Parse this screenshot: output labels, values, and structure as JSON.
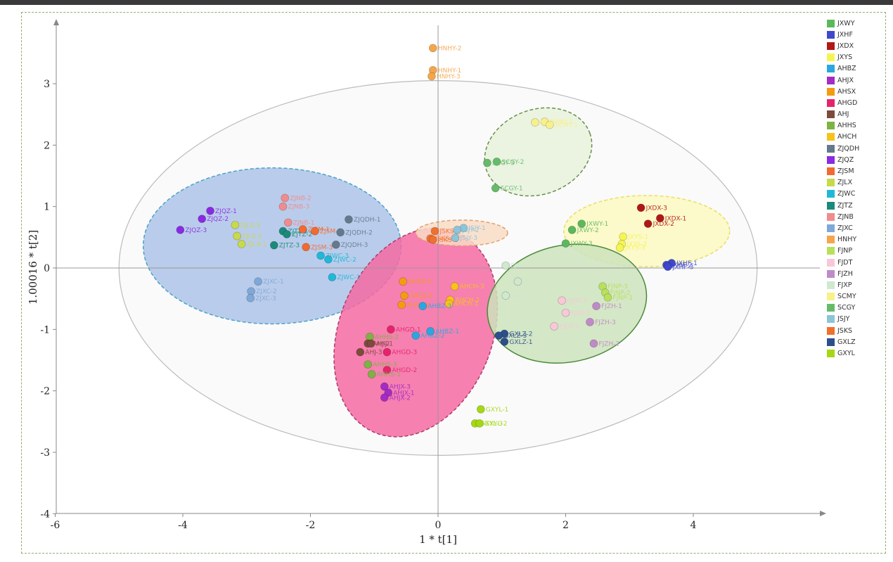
{
  "chart_data": {
    "type": "scatter",
    "xlabel": "1 * t[1]",
    "ylabel": "1.00016 * t[2]",
    "xlim": [
      -6,
      6
    ],
    "ylim": [
      -4,
      4
    ],
    "xticks": [
      -6,
      -4,
      -2,
      0,
      2,
      4
    ],
    "yticks": [
      -4,
      -3,
      -2,
      -1,
      0,
      1,
      2,
      3
    ],
    "grid": false,
    "legend_position": "right",
    "groups": [
      {
        "name": "JXWY",
        "color": "#5cb85c"
      },
      {
        "name": "JXHF",
        "color": "#3f48cc"
      },
      {
        "name": "JXDX",
        "color": "#b01818"
      },
      {
        "name": "JXYS",
        "color": "#f5f552"
      },
      {
        "name": "AHBZ",
        "color": "#29a7e1"
      },
      {
        "name": "AHJX",
        "color": "#a32cc4"
      },
      {
        "name": "AHSX",
        "color": "#f39c12"
      },
      {
        "name": "AHGD",
        "color": "#e6246b"
      },
      {
        "name": "AHJ",
        "color": "#7d4a3c"
      },
      {
        "name": "AHHS",
        "color": "#7cb342"
      },
      {
        "name": "AHCH",
        "color": "#f7c21a"
      },
      {
        "name": "ZJQDH",
        "color": "#647a8c"
      },
      {
        "name": "ZJQZ",
        "color": "#8a2be2"
      },
      {
        "name": "ZJSM",
        "color": "#f26a30"
      },
      {
        "name": "ZJLX",
        "color": "#c8d94a"
      },
      {
        "name": "ZJWC",
        "color": "#20b8d8"
      },
      {
        "name": "ZJTZ",
        "color": "#1b8a7a"
      },
      {
        "name": "ZJNB",
        "color": "#f08c8c"
      },
      {
        "name": "ZJXC",
        "color": "#7fa8d8"
      },
      {
        "name": "HNHY",
        "color": "#f5a54a"
      },
      {
        "name": "FJNP",
        "color": "#b8e05c"
      },
      {
        "name": "FJDT",
        "color": "#f8c8d8"
      },
      {
        "name": "FJZH",
        "color": "#c08ac8"
      },
      {
        "name": "FJXP",
        "color": "#cfe8cf"
      },
      {
        "name": "SCMY",
        "color": "#f8f08a"
      },
      {
        "name": "SCGY",
        "color": "#66bb6a"
      },
      {
        "name": "JSJY",
        "color": "#8cc4d8"
      },
      {
        "name": "JSKS",
        "color": "#f07030"
      },
      {
        "name": "GXLZ",
        "color": "#2c4f8c"
      },
      {
        "name": "GXYL",
        "color": "#a4d814"
      }
    ],
    "points": [
      {
        "label": "HNHY-2",
        "x": -0.08,
        "y": 3.58,
        "color": "#f5a54a"
      },
      {
        "label": "HNHY-1",
        "x": -0.08,
        "y": 3.22,
        "color": "#f5a54a"
      },
      {
        "label": "HNHY-3",
        "x": -0.1,
        "y": 3.12,
        "color": "#f5a54a"
      },
      {
        "label": "SCMY-2",
        "x": 1.67,
        "y": 2.38,
        "color": "#f8f08a"
      },
      {
        "label": "SCMY-1",
        "x": 1.75,
        "y": 2.33,
        "color": "#f8f08a"
      },
      {
        "label": "SCMY-3",
        "x": 1.52,
        "y": 2.37,
        "color": "#f8f08a"
      },
      {
        "label": "SCGY-2",
        "x": 0.92,
        "y": 1.73,
        "color": "#66bb6a"
      },
      {
        "label": "SCGY-3",
        "x": 0.77,
        "y": 1.71,
        "color": "#66bb6a"
      },
      {
        "label": "SCGY-1",
        "x": 0.9,
        "y": 1.3,
        "color": "#66bb6a"
      },
      {
        "label": "ZJQZ-1",
        "x": -3.57,
        "y": 0.93,
        "color": "#8a2be2"
      },
      {
        "label": "ZJQZ-2",
        "x": -3.7,
        "y": 0.8,
        "color": "#8a2be2"
      },
      {
        "label": "ZJQZ-3",
        "x": -4.04,
        "y": 0.62,
        "color": "#8a2be2"
      },
      {
        "label": "ZJLX-3",
        "x": -3.18,
        "y": 0.7,
        "color": "#c8d94a"
      },
      {
        "label": "ZJLX-2",
        "x": -3.15,
        "y": 0.52,
        "color": "#c8d94a"
      },
      {
        "label": "ZJLX-1",
        "x": -3.08,
        "y": 0.39,
        "color": "#c8d94a"
      },
      {
        "label": "ZJNB-2",
        "x": -2.4,
        "y": 1.14,
        "color": "#f08c8c"
      },
      {
        "label": "ZJNB-3",
        "x": -2.43,
        "y": 1.0,
        "color": "#f08c8c"
      },
      {
        "label": "ZJNB-1",
        "x": -2.35,
        "y": 0.74,
        "color": "#f08c8c"
      },
      {
        "label": "ZJTZ-1",
        "x": -2.43,
        "y": 0.6,
        "color": "#1b8a7a"
      },
      {
        "label": "ZJTZ-2",
        "x": -2.37,
        "y": 0.55,
        "color": "#1b8a7a"
      },
      {
        "label": "ZJTZ-3",
        "x": -2.57,
        "y": 0.37,
        "color": "#1b8a7a"
      },
      {
        "label": "ZJSM-1",
        "x": -2.12,
        "y": 0.63,
        "color": "#f26a30"
      },
      {
        "label": "ZJSM-2",
        "x": -1.93,
        "y": 0.6,
        "color": "#f26a30"
      },
      {
        "label": "ZJSM-3",
        "x": -2.07,
        "y": 0.34,
        "color": "#f26a30"
      },
      {
        "label": "ZJQDH-1",
        "x": -1.4,
        "y": 0.79,
        "color": "#647a8c"
      },
      {
        "label": "ZJQDH-2",
        "x": -1.53,
        "y": 0.58,
        "color": "#647a8c"
      },
      {
        "label": "ZJQDH-3",
        "x": -1.6,
        "y": 0.38,
        "color": "#647a8c"
      },
      {
        "label": "ZJWC-3",
        "x": -1.84,
        "y": 0.2,
        "color": "#20b8d8"
      },
      {
        "label": "ZJWC-2",
        "x": -1.72,
        "y": 0.14,
        "color": "#20b8d8"
      },
      {
        "label": "ZJWC-1",
        "x": -1.66,
        "y": -0.15,
        "color": "#20b8d8"
      },
      {
        "label": "ZJXC-1",
        "x": -2.82,
        "y": -0.22,
        "color": "#7fa8d8"
      },
      {
        "label": "ZJXC-2",
        "x": -2.93,
        "y": -0.38,
        "color": "#7fa8d8"
      },
      {
        "label": "ZJXC-3",
        "x": -2.94,
        "y": -0.49,
        "color": "#7fa8d8"
      },
      {
        "label": "JSKS-1",
        "x": -0.05,
        "y": 0.6,
        "color": "#f07030"
      },
      {
        "label": "JSKS-2",
        "x": -0.12,
        "y": 0.48,
        "color": "#f07030"
      },
      {
        "label": "JSKS-3",
        "x": -0.08,
        "y": 0.46,
        "color": "#f07030"
      },
      {
        "label": "JSJY-1",
        "x": 0.4,
        "y": 0.65,
        "color": "#8cc4d8"
      },
      {
        "label": "JSJY-2",
        "x": 0.3,
        "y": 0.62,
        "color": "#8cc4d8"
      },
      {
        "label": "JSJY-3",
        "x": 0.27,
        "y": 0.49,
        "color": "#8cc4d8"
      },
      {
        "label": "JXWY-1",
        "x": 2.25,
        "y": 0.72,
        "color": "#5cb85c"
      },
      {
        "label": "JXWY-2",
        "x": 2.1,
        "y": 0.62,
        "color": "#5cb85c"
      },
      {
        "label": "JXWY-3",
        "x": 2.0,
        "y": 0.4,
        "color": "#5cb85c"
      },
      {
        "label": "JXDX-3",
        "x": 3.18,
        "y": 0.98,
        "color": "#b01818"
      },
      {
        "label": "JXDX-1",
        "x": 3.48,
        "y": 0.81,
        "color": "#b01818"
      },
      {
        "label": "JXDX-2",
        "x": 3.29,
        "y": 0.72,
        "color": "#b01818"
      },
      {
        "label": "JXYS-1",
        "x": 2.9,
        "y": 0.51,
        "color": "#f5f552"
      },
      {
        "label": "JXYS-2",
        "x": 2.88,
        "y": 0.39,
        "color": "#f5f552"
      },
      {
        "label": "JXYS-3",
        "x": 2.85,
        "y": 0.33,
        "color": "#f5f552"
      },
      {
        "label": "JXHF-1",
        "x": 3.66,
        "y": 0.08,
        "color": "#3f48cc"
      },
      {
        "label": "JXHF-2",
        "x": 3.58,
        "y": 0.05,
        "color": "#3f48cc"
      },
      {
        "label": "JXHF-3",
        "x": 3.6,
        "y": 0.02,
        "color": "#3f48cc"
      },
      {
        "label": "FJXP-3",
        "x": 1.06,
        "y": 0.04,
        "color": "#cfe8cf"
      },
      {
        "label": "FJXP-1",
        "x": 1.25,
        "y": -0.22,
        "color": "#cfe8cf"
      },
      {
        "label": "FJXP-2",
        "x": 1.06,
        "y": -0.45,
        "color": "#cfe8cf"
      },
      {
        "label": "FJNP-3",
        "x": 2.58,
        "y": -0.3,
        "color": "#b8e05c"
      },
      {
        "label": "FJNP-2",
        "x": 2.62,
        "y": -0.4,
        "color": "#b8e05c"
      },
      {
        "label": "FJNP-1",
        "x": 2.66,
        "y": -0.48,
        "color": "#b8e05c"
      },
      {
        "label": "FJDT-2",
        "x": 1.94,
        "y": -0.53,
        "color": "#f8c8d8"
      },
      {
        "label": "FJDT-1",
        "x": 2.0,
        "y": -0.73,
        "color": "#f8c8d8"
      },
      {
        "label": "FJDT-3",
        "x": 1.82,
        "y": -0.95,
        "color": "#f8c8d8"
      },
      {
        "label": "FJZH-1",
        "x": 2.48,
        "y": -0.62,
        "color": "#c08ac8"
      },
      {
        "label": "FJZH-3",
        "x": 2.38,
        "y": -0.88,
        "color": "#c08ac8"
      },
      {
        "label": "FJZH-2",
        "x": 2.44,
        "y": -1.23,
        "color": "#c08ac8"
      },
      {
        "label": "AHSX-3",
        "x": -0.55,
        "y": -0.22,
        "color": "#f39c12"
      },
      {
        "label": "AHSX-2",
        "x": -0.53,
        "y": -0.45,
        "color": "#f39c12"
      },
      {
        "label": "AHSX-1",
        "x": -0.57,
        "y": -0.6,
        "color": "#f39c12"
      },
      {
        "label": "AHCH-3",
        "x": 0.26,
        "y": -0.3,
        "color": "#f7c21a"
      },
      {
        "label": "AHCH-2",
        "x": 0.19,
        "y": -0.52,
        "color": "#f7c21a"
      },
      {
        "label": "AHCH-1",
        "x": 0.17,
        "y": -0.58,
        "color": "#f7c21a"
      },
      {
        "label": "AHBZ-3",
        "x": -0.24,
        "y": -0.62,
        "color": "#29a7e1"
      },
      {
        "label": "AHBZ-2",
        "x": -0.35,
        "y": -1.1,
        "color": "#29a7e1"
      },
      {
        "label": "AHBZ-1",
        "x": -0.12,
        "y": -1.03,
        "color": "#29a7e1"
      },
      {
        "label": "AHGD-1",
        "x": -0.74,
        "y": -1.0,
        "color": "#e6246b"
      },
      {
        "label": "AHGD-3",
        "x": -0.8,
        "y": -1.37,
        "color": "#e6246b"
      },
      {
        "label": "AHGD-2",
        "x": -0.8,
        "y": -1.66,
        "color": "#e6246b"
      },
      {
        "label": "AHHS-2",
        "x": -1.07,
        "y": -1.12,
        "color": "#7cb342"
      },
      {
        "label": "AHHS-3",
        "x": -1.1,
        "y": -1.57,
        "color": "#7cb342"
      },
      {
        "label": "AHHS-1",
        "x": -1.04,
        "y": -1.73,
        "color": "#7cb342"
      },
      {
        "label": "AHJ-2",
        "x": -1.1,
        "y": -1.23,
        "color": "#7d4a3c"
      },
      {
        "label": "AHJ-1",
        "x": -1.05,
        "y": -1.23,
        "color": "#7d4a3c"
      },
      {
        "label": "AHJ-3",
        "x": -1.22,
        "y": -1.37,
        "color": "#7d4a3c"
      },
      {
        "label": "AHJX-3",
        "x": -0.84,
        "y": -1.93,
        "color": "#a32cc4"
      },
      {
        "label": "AHJX-1",
        "x": -0.78,
        "y": -2.03,
        "color": "#a32cc4"
      },
      {
        "label": "AHJX-2",
        "x": -0.84,
        "y": -2.11,
        "color": "#a32cc4"
      },
      {
        "label": "GXLZ-2",
        "x": 1.04,
        "y": -1.07,
        "color": "#2c4f8c"
      },
      {
        "label": "GXLZ-3",
        "x": 0.95,
        "y": -1.1,
        "color": "#2c4f8c"
      },
      {
        "label": "GXLZ-1",
        "x": 1.04,
        "y": -1.2,
        "color": "#2c4f8c"
      },
      {
        "label": "GXYL-1",
        "x": 0.67,
        "y": -2.3,
        "color": "#a4d814"
      },
      {
        "label": "GXYL-3",
        "x": 0.58,
        "y": -2.53,
        "color": "#a4d814"
      },
      {
        "label": "GXYL-2",
        "x": 0.65,
        "y": -2.53,
        "color": "#a4d814"
      }
    ],
    "ellipses": [
      {
        "name": "hotelling",
        "cx": 0.0,
        "cy": 0.0,
        "rx": 5.0,
        "ry": 3.05,
        "rotate": 0,
        "fill": "#f7f7f7",
        "stroke": "#bbbbbb",
        "dashed": false
      },
      {
        "name": "blue-cluster",
        "cx": -2.6,
        "cy": 0.36,
        "rx": 2.02,
        "ry": 1.27,
        "rotate": 0,
        "fill": "#aec3e8",
        "stroke": "#4aa3c8",
        "dashed": true
      },
      {
        "name": "pink-cluster",
        "cx": -0.35,
        "cy": -1.05,
        "rx": 1.2,
        "ry": 1.76,
        "rotate": 22,
        "fill": "#f46aa2",
        "stroke": "#b03a6a",
        "dashed": true
      },
      {
        "name": "orange-cluster",
        "cx": 0.37,
        "cy": 0.57,
        "rx": 0.72,
        "ry": 0.21,
        "rotate": 0,
        "fill": "#f9dcc5",
        "stroke": "#e0a070",
        "dashed": true
      },
      {
        "name": "light-green-cluster",
        "cx": 1.57,
        "cy": 1.89,
        "rx": 0.86,
        "ry": 0.69,
        "rotate": -20,
        "fill": "#e6f2dc",
        "stroke": "#6a8f4a",
        "dashed": true
      },
      {
        "name": "yellow-cluster",
        "cx": 3.27,
        "cy": 0.6,
        "rx": 1.3,
        "ry": 0.58,
        "rotate": 0,
        "fill": "#fbf8c2",
        "stroke": "#e8e060",
        "dashed": true
      },
      {
        "name": "green-cluster",
        "cx": 2.02,
        "cy": -0.58,
        "rx": 1.26,
        "ry": 0.95,
        "rotate": -12,
        "fill": "#cde3bc",
        "stroke": "#4a8a3a",
        "dashed": false
      }
    ]
  }
}
